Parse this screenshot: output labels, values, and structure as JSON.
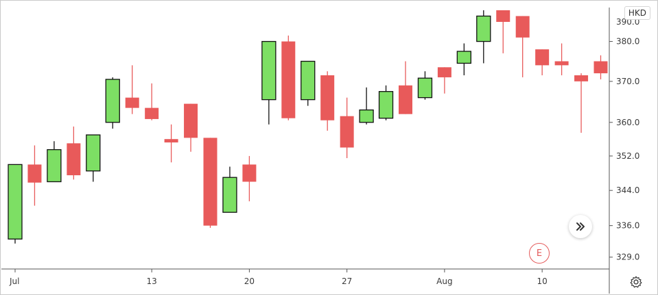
{
  "currency": "HKD",
  "event_marker": "E",
  "colors": {
    "up": "#7ddf64",
    "down": "#e85a5a",
    "axis": "#555555",
    "text": "#3a3a3a"
  },
  "icons": {
    "scroll": "chevron-double-right-icon",
    "settings": "gear-icon"
  },
  "chart_data": {
    "type": "candlestick",
    "x_tick_labels": [
      {
        "index": 0,
        "label": "Jul"
      },
      {
        "index": 7,
        "label": "13"
      },
      {
        "index": 12,
        "label": "20"
      },
      {
        "index": 17,
        "label": "27"
      },
      {
        "index": 22,
        "label": "Aug"
      },
      {
        "index": 27,
        "label": "10"
      }
    ],
    "y_ticks": [
      329.0,
      336.0,
      344.0,
      352.0,
      360.0,
      370.0,
      380.0
    ],
    "y_tick_labels": [
      "329.0",
      "336.0",
      "344.0",
      "352.0",
      "360.0",
      "370.0",
      "380.0"
    ],
    "ylim": [
      327,
      388
    ],
    "scale": "log",
    "candles": [
      {
        "o": 333.0,
        "h": 350.0,
        "l": 332.0,
        "c": 350.0
      },
      {
        "o": 350.0,
        "h": 354.5,
        "l": 340.5,
        "c": 345.8
      },
      {
        "o": 346.0,
        "h": 355.5,
        "l": 346.0,
        "c": 353.5
      },
      {
        "o": 355.0,
        "h": 359.0,
        "l": 346.5,
        "c": 347.5
      },
      {
        "o": 348.5,
        "h": 357.0,
        "l": 346.0,
        "c": 357.0
      },
      {
        "o": 360.0,
        "h": 371.0,
        "l": 358.5,
        "c": 370.5
      },
      {
        "o": 366.0,
        "h": 374.0,
        "l": 362.0,
        "c": 363.5
      },
      {
        "o": 363.5,
        "h": 369.5,
        "l": 360.5,
        "c": 360.8
      },
      {
        "o": 356.0,
        "h": 359.5,
        "l": 350.5,
        "c": 355.2
      },
      {
        "o": 364.5,
        "h": 364.5,
        "l": 353.0,
        "c": 356.3
      },
      {
        "o": 356.3,
        "h": 356.3,
        "l": 335.5,
        "c": 336.0
      },
      {
        "o": 339.0,
        "h": 349.5,
        "l": 339.0,
        "c": 347.0
      },
      {
        "o": 350.0,
        "h": 352.0,
        "l": 341.5,
        "c": 346.0
      },
      {
        "o": 365.5,
        "h": 380.0,
        "l": 359.5,
        "c": 380.0
      },
      {
        "o": 380.0,
        "h": 381.5,
        "l": 360.5,
        "c": 361.0
      },
      {
        "o": 365.5,
        "h": 375.0,
        "l": 364.0,
        "c": 375.0
      },
      {
        "o": 371.5,
        "h": 372.5,
        "l": 358.0,
        "c": 360.5
      },
      {
        "o": 361.5,
        "h": 366.0,
        "l": 351.5,
        "c": 354.0
      },
      {
        "o": 360.0,
        "h": 368.5,
        "l": 359.5,
        "c": 363.0
      },
      {
        "o": 361.0,
        "h": 369.0,
        "l": 360.5,
        "c": 367.5
      },
      {
        "o": 369.0,
        "h": 375.0,
        "l": 362.0,
        "c": 362.0
      },
      {
        "o": 366.0,
        "h": 372.5,
        "l": 365.5,
        "c": 370.8
      },
      {
        "o": 373.5,
        "h": 373.5,
        "l": 367.0,
        "c": 371.0
      },
      {
        "o": 374.5,
        "h": 379.5,
        "l": 371.5,
        "c": 377.5
      },
      {
        "o": 380.0,
        "h": 388.0,
        "l": 374.5,
        "c": 386.5
      },
      {
        "o": 388.0,
        "h": 388.0,
        "l": 377.0,
        "c": 385.0
      },
      {
        "o": 386.5,
        "h": 386.5,
        "l": 371.0,
        "c": 381.0
      },
      {
        "o": 378.0,
        "h": 378.0,
        "l": 371.5,
        "c": 374.0
      },
      {
        "o": 375.0,
        "h": 379.5,
        "l": 371.5,
        "c": 374.0
      },
      {
        "o": 371.5,
        "h": 372.0,
        "l": 357.5,
        "c": 370.0
      },
      {
        "o": 375.0,
        "h": 376.5,
        "l": 370.5,
        "c": 372.0
      }
    ]
  }
}
